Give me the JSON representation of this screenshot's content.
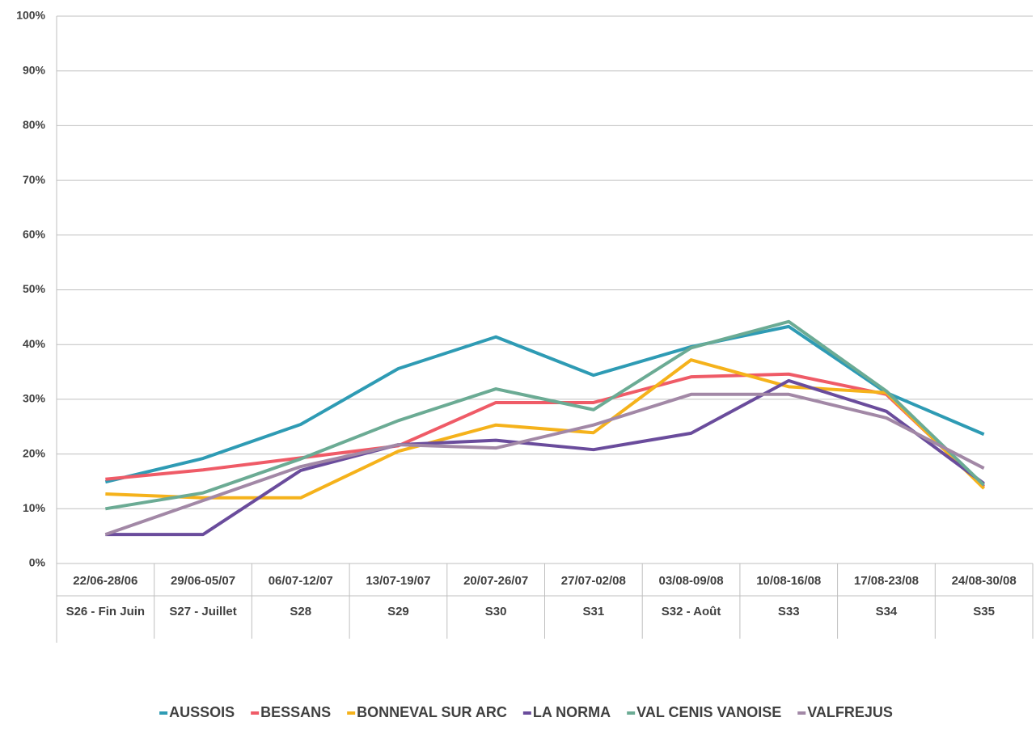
{
  "chart_data": {
    "type": "line",
    "categories": [
      "22/06-28/06",
      "29/06-05/07",
      "06/07-12/07",
      "13/07-19/07",
      "20/07-26/07",
      "27/07-02/08",
      "03/08-09/08",
      "10/08-16/08",
      "17/08-23/08",
      "24/08-30/08"
    ],
    "weeks": [
      "S26 - Fin Juin",
      "S27 - Juillet",
      "S28",
      "S29",
      "S30",
      "S31",
      "S32 - Août",
      "S33",
      "S34",
      "S35"
    ],
    "series": [
      {
        "name": "AUSSOIS",
        "color": "#2e9bb4",
        "values": [
          14.9,
          19.2,
          25.4,
          35.6,
          41.4,
          34.4,
          39.6,
          43.3,
          31.2,
          23.6
        ]
      },
      {
        "name": "BESSANS",
        "color": "#ef5b67",
        "values": [
          15.4,
          17.1,
          19.3,
          21.5,
          29.4,
          29.4,
          34.1,
          34.6,
          30.9,
          14.0
        ]
      },
      {
        "name": "BONNEVAL SUR ARC",
        "color": "#f5b21b",
        "values": [
          12.7,
          12.0,
          12.0,
          20.5,
          25.3,
          23.9,
          37.2,
          32.3,
          31.2,
          13.7
        ]
      },
      {
        "name": "LA NORMA",
        "color": "#6a4c9c",
        "values": [
          5.3,
          5.3,
          17.0,
          21.7,
          22.5,
          20.8,
          23.8,
          33.4,
          27.8,
          14.6
        ]
      },
      {
        "name": "VAL CENIS VANOISE",
        "color": "#6bab94",
        "values": [
          10.0,
          12.9,
          19.1,
          26.1,
          31.9,
          28.1,
          39.4,
          44.2,
          31.5,
          14.3
        ]
      },
      {
        "name": "VALFREJUS",
        "color": "#a288a6",
        "values": [
          5.3,
          11.5,
          17.7,
          21.7,
          21.1,
          25.3,
          30.9,
          30.9,
          26.6,
          17.4
        ]
      }
    ],
    "ylim": [
      0,
      100
    ],
    "yticks": [
      {
        "value": 0,
        "label": "0%"
      },
      {
        "value": 10,
        "label": "10%"
      },
      {
        "value": 20,
        "label": "20%"
      },
      {
        "value": 30,
        "label": "30%"
      },
      {
        "value": 40,
        "label": "40%"
      },
      {
        "value": 50,
        "label": "50%"
      },
      {
        "value": 60,
        "label": "60%"
      },
      {
        "value": 70,
        "label": "70%"
      },
      {
        "value": 80,
        "label": "80%"
      },
      {
        "value": 90,
        "label": "90%"
      },
      {
        "value": 100,
        "label": "100%"
      }
    ],
    "grid": true,
    "legend": "bottom"
  }
}
